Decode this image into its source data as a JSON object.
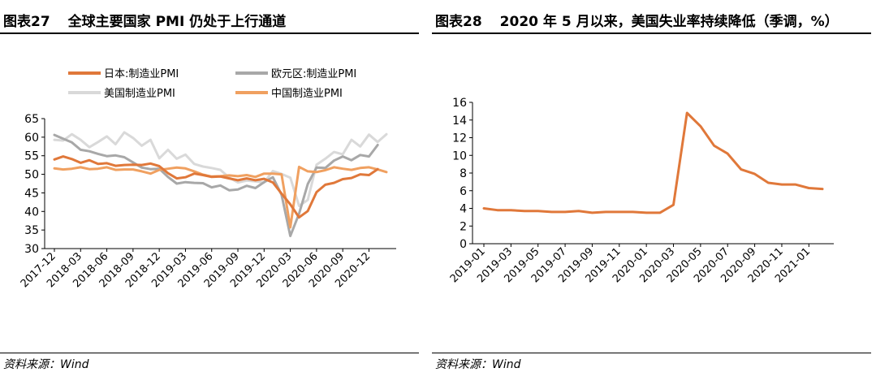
{
  "left": {
    "figure_label": "图表27",
    "title": "全球主要国家 PMI 仍处于上行通道",
    "source": "资料来源：Wind"
  },
  "right": {
    "figure_label": "图表28",
    "title": "2020 年 5 月以来，美国失业率持续降低（季调，%）",
    "source": "资料来源：Wind"
  },
  "chart_data": [
    {
      "type": "line",
      "x_tick_labels": [
        "2017-12",
        "2018-03",
        "2018-06",
        "2018-09",
        "2018-12",
        "2019-03",
        "2019-06",
        "2019-09",
        "2019-12",
        "2020-03",
        "2020-06",
        "2020-09",
        "2020-12"
      ],
      "ylim": [
        30,
        65
      ],
      "y_ticks": [
        30,
        35,
        40,
        45,
        50,
        55,
        60,
        65
      ],
      "grid": false,
      "legend_position": "top",
      "series": [
        {
          "name": "日本:制造业PMI",
          "color": "#e0783a",
          "values": [
            54.0,
            54.8,
            54.1,
            53.1,
            53.8,
            52.8,
            53.0,
            52.3,
            52.5,
            52.6,
            52.5,
            52.9,
            52.2,
            50.3,
            48.9,
            49.2,
            50.2,
            49.8,
            49.3,
            49.4,
            48.9,
            48.4,
            48.9,
            48.4,
            48.8,
            47.8,
            44.8,
            41.9,
            38.4,
            40.1,
            45.2,
            47.2,
            47.7,
            48.7,
            49.0,
            50.0,
            49.8,
            51.4
          ]
        },
        {
          "name": "欧元区:制造业PMI",
          "color": "#a8a8a8",
          "values": [
            60.6,
            59.6,
            58.6,
            56.6,
            56.2,
            55.5,
            54.9,
            55.1,
            54.6,
            53.2,
            51.8,
            51.4,
            51.5,
            49.3,
            47.5,
            47.9,
            47.7,
            47.6,
            46.5,
            47.0,
            45.7,
            45.9,
            46.9,
            46.3,
            47.9,
            49.2,
            44.5,
            33.4,
            39.4,
            47.4,
            51.8,
            51.7,
            53.7,
            54.8,
            53.8,
            55.2,
            54.8,
            57.9
          ]
        },
        {
          "name": "美国制造业PMI",
          "color": "#d9d9d9",
          "values": [
            59.3,
            59.1,
            60.8,
            59.3,
            57.3,
            58.7,
            60.2,
            58.1,
            61.3,
            59.8,
            57.7,
            59.3,
            54.3,
            56.6,
            54.2,
            55.3,
            52.8,
            52.1,
            51.7,
            51.2,
            49.1,
            47.8,
            48.3,
            48.1,
            47.8,
            50.9,
            50.1,
            49.1,
            41.5,
            43.1,
            52.6,
            54.2,
            56.0,
            55.4,
            59.3,
            57.5,
            60.7,
            58.7,
            60.8
          ]
        },
        {
          "name": "中国制造业PMI",
          "color": "#f0a060",
          "values": [
            51.6,
            51.3,
            51.5,
            51.9,
            51.4,
            51.5,
            51.9,
            51.2,
            51.3,
            51.3,
            50.8,
            50.2,
            51.2,
            51.5,
            51.8,
            51.6,
            50.8,
            49.9,
            49.4,
            49.5,
            49.7,
            49.5,
            49.8,
            49.3,
            50.2,
            50.2,
            50.0,
            35.7,
            52.0,
            50.8,
            50.6,
            51.1,
            51.9,
            51.5,
            51.2,
            51.7,
            51.9,
            51.3,
            50.6
          ]
        }
      ]
    },
    {
      "type": "line",
      "x_tick_labels": [
        "2019-01",
        "2019-03",
        "2019-05",
        "2019-07",
        "2019-09",
        "2019-11",
        "2020-01",
        "2020-03",
        "2020-05",
        "2020-07",
        "2020-09",
        "2020-11",
        "2021-01"
      ],
      "ylim": [
        0,
        16
      ],
      "y_ticks": [
        0,
        2,
        4,
        6,
        8,
        10,
        12,
        14,
        16
      ],
      "grid": false,
      "legend_position": "none",
      "series": [
        {
          "color": "#e0783a",
          "values": [
            4.0,
            3.8,
            3.8,
            3.7,
            3.7,
            3.6,
            3.6,
            3.7,
            3.5,
            3.6,
            3.6,
            3.6,
            3.5,
            3.5,
            4.4,
            14.8,
            13.3,
            11.1,
            10.2,
            8.4,
            7.9,
            6.9,
            6.7,
            6.7,
            6.3,
            6.2
          ]
        }
      ]
    }
  ]
}
